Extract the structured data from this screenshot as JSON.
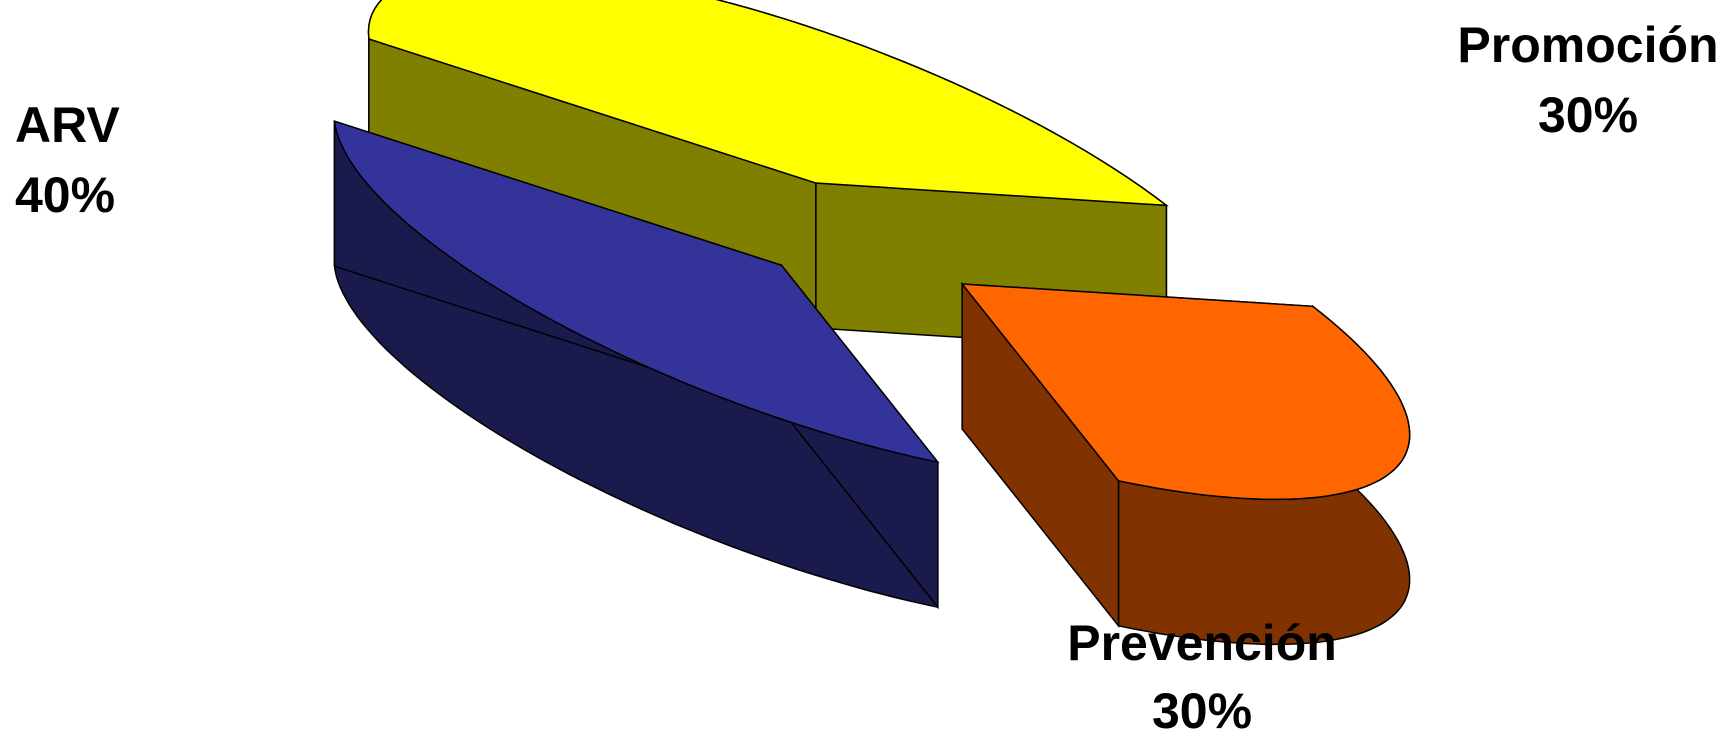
{
  "chart_data": {
    "type": "pie",
    "title": "",
    "categories": [
      "ARV",
      "Promoción",
      "Prevención"
    ],
    "values": [
      40,
      30,
      30
    ],
    "value_labels": [
      "40%",
      "30%",
      "30%"
    ],
    "exploded": true,
    "three_d": true,
    "legend": "none",
    "slices": [
      {
        "name": "ARV",
        "value": 40,
        "label": "40%",
        "top_color": "#FFFF00",
        "side_color": "#808000"
      },
      {
        "name": "Promoción",
        "value": 30,
        "label": "30%",
        "top_color": "#FF6600",
        "side_color": "#803300"
      },
      {
        "name": "Prevención",
        "value": 30,
        "label": "30%",
        "top_color": "#333399",
        "side_color": "#1A1A4D"
      }
    ]
  }
}
